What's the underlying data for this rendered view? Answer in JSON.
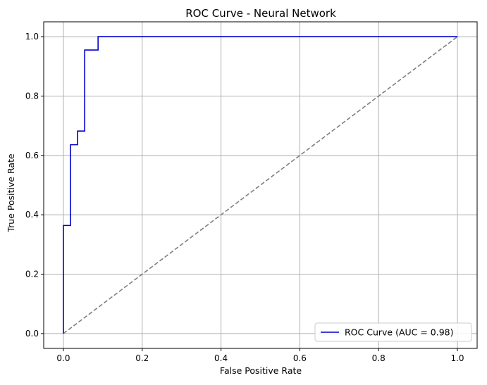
{
  "chart_data": {
    "type": "line",
    "title": "ROC Curve - Neural Network",
    "xlabel": "False Positive Rate",
    "ylabel": "True Positive Rate",
    "xlim": [
      -0.05,
      1.05
    ],
    "ylim": [
      -0.05,
      1.05
    ],
    "xticks": [
      0.0,
      0.2,
      0.4,
      0.6,
      0.8,
      1.0
    ],
    "yticks": [
      0.0,
      0.2,
      0.4,
      0.6,
      0.8,
      1.0
    ],
    "xtick_labels": [
      "0.0",
      "0.2",
      "0.4",
      "0.6",
      "0.8",
      "1.0"
    ],
    "ytick_labels": [
      "0.0",
      "0.2",
      "0.4",
      "0.6",
      "0.8",
      "1.0"
    ],
    "grid": true,
    "legend_position": "lower-right",
    "series": [
      {
        "name": "ROC Curve (AUC = 0.98)",
        "color": "#0000cc",
        "style": "solid",
        "step": true,
        "x": [
          0.0,
          0.0,
          0.018,
          0.018,
          0.036,
          0.036,
          0.054,
          0.054,
          0.088,
          0.088,
          1.0
        ],
        "y": [
          0.0,
          0.364,
          0.364,
          0.636,
          0.636,
          0.682,
          0.682,
          0.955,
          0.955,
          1.0,
          1.0
        ]
      },
      {
        "color": "#808080",
        "style": "dashed",
        "x": [
          0.0,
          1.0
        ],
        "y": [
          0.0,
          1.0
        ]
      }
    ]
  }
}
